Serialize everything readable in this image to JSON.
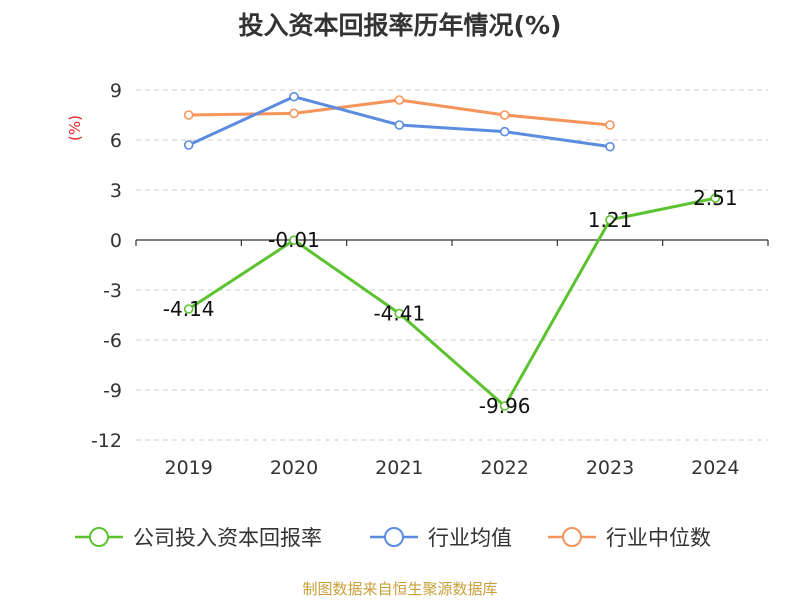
{
  "title": "投入资本回报率历年情况(%)",
  "source": "制图数据来自恒生聚源数据库",
  "colors": {
    "company": "#5cc22f",
    "industry_avg": "#5b8ce0",
    "industry_median": "#f5955c",
    "grid": "#cccccc",
    "axis": "#333333",
    "unit": "#e02020",
    "source": "#c8a03a"
  },
  "chart_data": {
    "type": "line",
    "title": "投入资本回报率历年情况(%)",
    "ylabel": "(%)",
    "xlabel": "",
    "categories": [
      "2019",
      "2020",
      "2021",
      "2022",
      "2023",
      "2024"
    ],
    "ylim": [
      -12,
      9
    ],
    "yticks": [
      "9",
      "6",
      "3",
      "0",
      "-3",
      "-6",
      "-9",
      "-12"
    ],
    "ytick_values": [
      9,
      6,
      3,
      0,
      -3,
      -6,
      -9,
      -12
    ],
    "grid": true,
    "legend_position": "bottom",
    "series": [
      {
        "name": "公司投入资本回报率",
        "key": "company",
        "values": [
          -4.14,
          -0.01,
          -4.41,
          -9.96,
          1.21,
          2.51
        ],
        "labels": [
          "-4.14",
          "-0.01",
          "-4.41",
          "-9.96",
          "1.21",
          "2.51"
        ]
      },
      {
        "name": "行业均值",
        "key": "industry_avg",
        "values": [
          5.7,
          8.6,
          6.9,
          6.5,
          5.6,
          null
        ]
      },
      {
        "name": "行业中位数",
        "key": "industry_median",
        "values": [
          7.5,
          7.6,
          8.4,
          7.5,
          6.9,
          null
        ]
      }
    ]
  }
}
